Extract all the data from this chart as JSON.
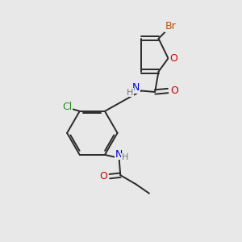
{
  "background_color": "#e8e8e8",
  "bond_color": "#2a2a2a",
  "colors": {
    "Br": "#b8520a",
    "O": "#cc0000",
    "N": "#0000cc",
    "Cl": "#228B22",
    "H": "#777777"
  },
  "figsize": [
    3.0,
    3.0
  ],
  "dpi": 100
}
